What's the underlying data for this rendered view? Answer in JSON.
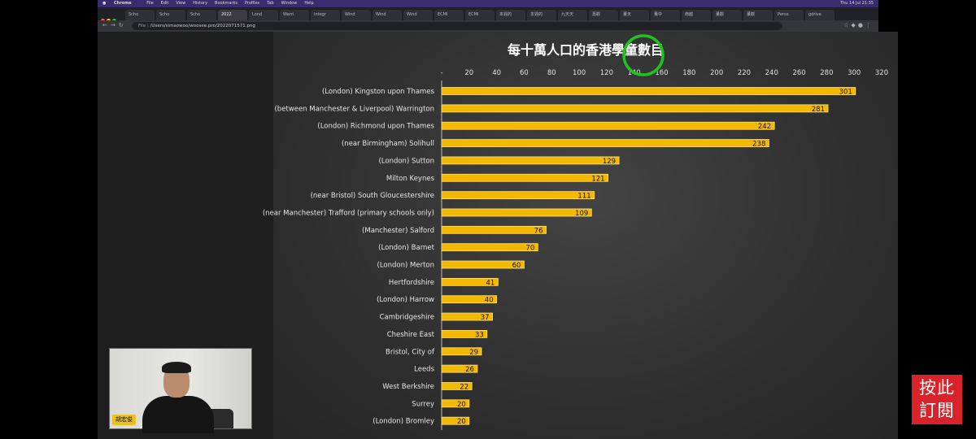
{
  "menubar": {
    "app": "Chrome",
    "items": [
      "File",
      "Edit",
      "View",
      "History",
      "Bookmarks",
      "Profiles",
      "Tab",
      "Window",
      "Help"
    ],
    "clock": "Thu 14 Jul  21:35"
  },
  "tabs": [
    "Scho",
    "Scho",
    "Scho",
    "2022",
    "Lond",
    "Warri",
    "Integr",
    "Wind",
    "Wind",
    "Wind",
    "ECMI",
    "ECMI",
    "本週的",
    "本週的",
    "九天天",
    "嘉觀",
    "董天",
    "董中",
    "南越",
    "董觀",
    "董觀",
    "Perso",
    "gdrive"
  ],
  "address": {
    "scheme": "File",
    "path": "/Users/simaowoo/woosee.pro/2022071571.png"
  },
  "chart_data": {
    "type": "bar",
    "orientation": "horizontal",
    "title": "每十萬人口的香港學童數目",
    "xlim": [
      0,
      320
    ],
    "x_ticks": [
      "-",
      "20",
      "40",
      "60",
      "80",
      "100",
      "120",
      "140",
      "160",
      "180",
      "200",
      "220",
      "240",
      "260",
      "280",
      "300",
      "320"
    ],
    "grid": false,
    "bar_color": "#f5b800",
    "categories": [
      "(London) Kingston upon Thames",
      "(between Manchester & Liverpool) Warrington",
      "(London) Richmond upon Thames",
      "(near Birmingham) Solihull",
      "(London) Sutton",
      "Milton Keynes",
      "(near Bristol) South Gloucestershire",
      "(near Manchester) Trafford (primary schools only)",
      "(Manchester) Salford",
      "(London) Barnet",
      "(London) Merton",
      "Hertfordshire",
      "(London) Harrow",
      "Cambridgeshire",
      "Cheshire East",
      "Bristol, City of",
      "Leeds",
      "West Berkshire",
      "Surrey",
      "(London) Bromley"
    ],
    "values": [
      301,
      281,
      242,
      238,
      129,
      121,
      111,
      109,
      76,
      70,
      60,
      41,
      40,
      37,
      33,
      29,
      26,
      22,
      20,
      20
    ]
  },
  "webcam": {
    "name_tag": "胡宏俊"
  },
  "subscribe": {
    "line1": "按此",
    "line2": "訂閱"
  },
  "colors": {
    "highlight_circle": "#1fc31f",
    "subscribe_bg": "#d9232a"
  }
}
